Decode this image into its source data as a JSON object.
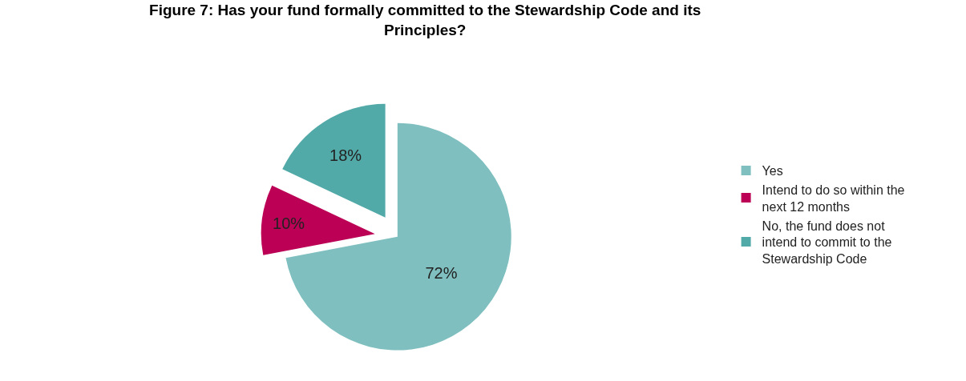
{
  "chart_data": {
    "type": "pie",
    "title": "Figure 7: Has your fund formally committed to the Stewardship Code and its Principles?",
    "categories": [
      "Yes",
      "Intend to do so within the next 12 months",
      "No, the fund does not intend to commit to the Stewardship Code"
    ],
    "values": [
      72,
      10,
      18
    ],
    "value_labels": [
      "72%",
      "10%",
      "18%"
    ],
    "colors": [
      "#7fbfbf",
      "#bb0055",
      "#52aaa8"
    ],
    "legend": "right"
  }
}
